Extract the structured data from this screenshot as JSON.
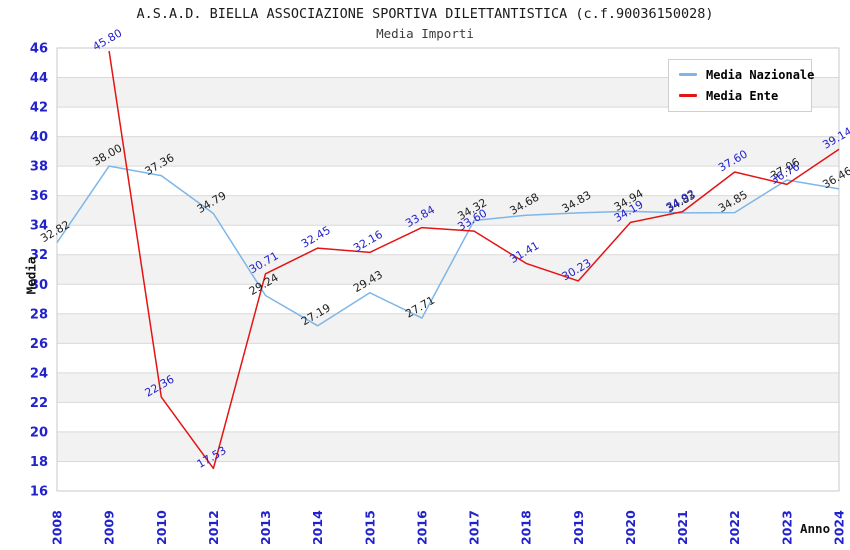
{
  "header": {
    "title": "A.S.A.D. BIELLA ASSOCIAZIONE SPORTIVA DILETTANTISTICA (c.f.90036150028)",
    "subtitle": "Media Importi"
  },
  "axes": {
    "y_title": "Media",
    "x_title": "Anno"
  },
  "legend": {
    "items": [
      {
        "label": "Media Nazionale",
        "color": "#7eb6e8"
      },
      {
        "label": "Media Ente",
        "color": "#e41414"
      }
    ]
  },
  "chart_data": {
    "type": "line",
    "title": "A.S.A.D. BIELLA ASSOCIAZIONE SPORTIVA DILETTANTISTICA (c.f.90036150028)",
    "subtitle": "Media Importi",
    "xlabel": "Anno",
    "ylabel": "Media",
    "ylim": [
      16,
      46
    ],
    "ytick_step": 2,
    "y_ticks": [
      46,
      44,
      42,
      40,
      38,
      36,
      34,
      32,
      30,
      28,
      26,
      24,
      22,
      20,
      18,
      16
    ],
    "categories": [
      "2008",
      "2009",
      "2010",
      "2012",
      "2013",
      "2014",
      "2015",
      "2016",
      "2017",
      "2018",
      "2019",
      "2020",
      "2021",
      "2022",
      "2023",
      "2024"
    ],
    "series": [
      {
        "name": "Media Nazionale",
        "color": "#7eb6e8",
        "label_color": "#1f1f1f",
        "values": [
          32.82,
          38.0,
          37.36,
          34.79,
          29.24,
          27.19,
          29.43,
          27.71,
          34.32,
          34.68,
          34.83,
          34.94,
          34.83,
          34.85,
          37.06,
          36.46
        ]
      },
      {
        "name": "Media Ente",
        "color": "#e41414",
        "label_color": "#2222cc",
        "values": [
          null,
          45.8,
          22.36,
          17.53,
          30.71,
          32.45,
          32.16,
          33.84,
          33.6,
          31.41,
          30.23,
          34.19,
          34.92,
          37.6,
          36.76,
          39.14
        ]
      }
    ],
    "grid": "horizontal gridlines with alternating gray/white bands every 2 units",
    "legend_position": "top-right",
    "tick_label_color": "#2222cc",
    "band_color": "#f2f2f2",
    "gridline_color": "#d9d9d9",
    "plot_border_color": "#c9c9c9"
  }
}
